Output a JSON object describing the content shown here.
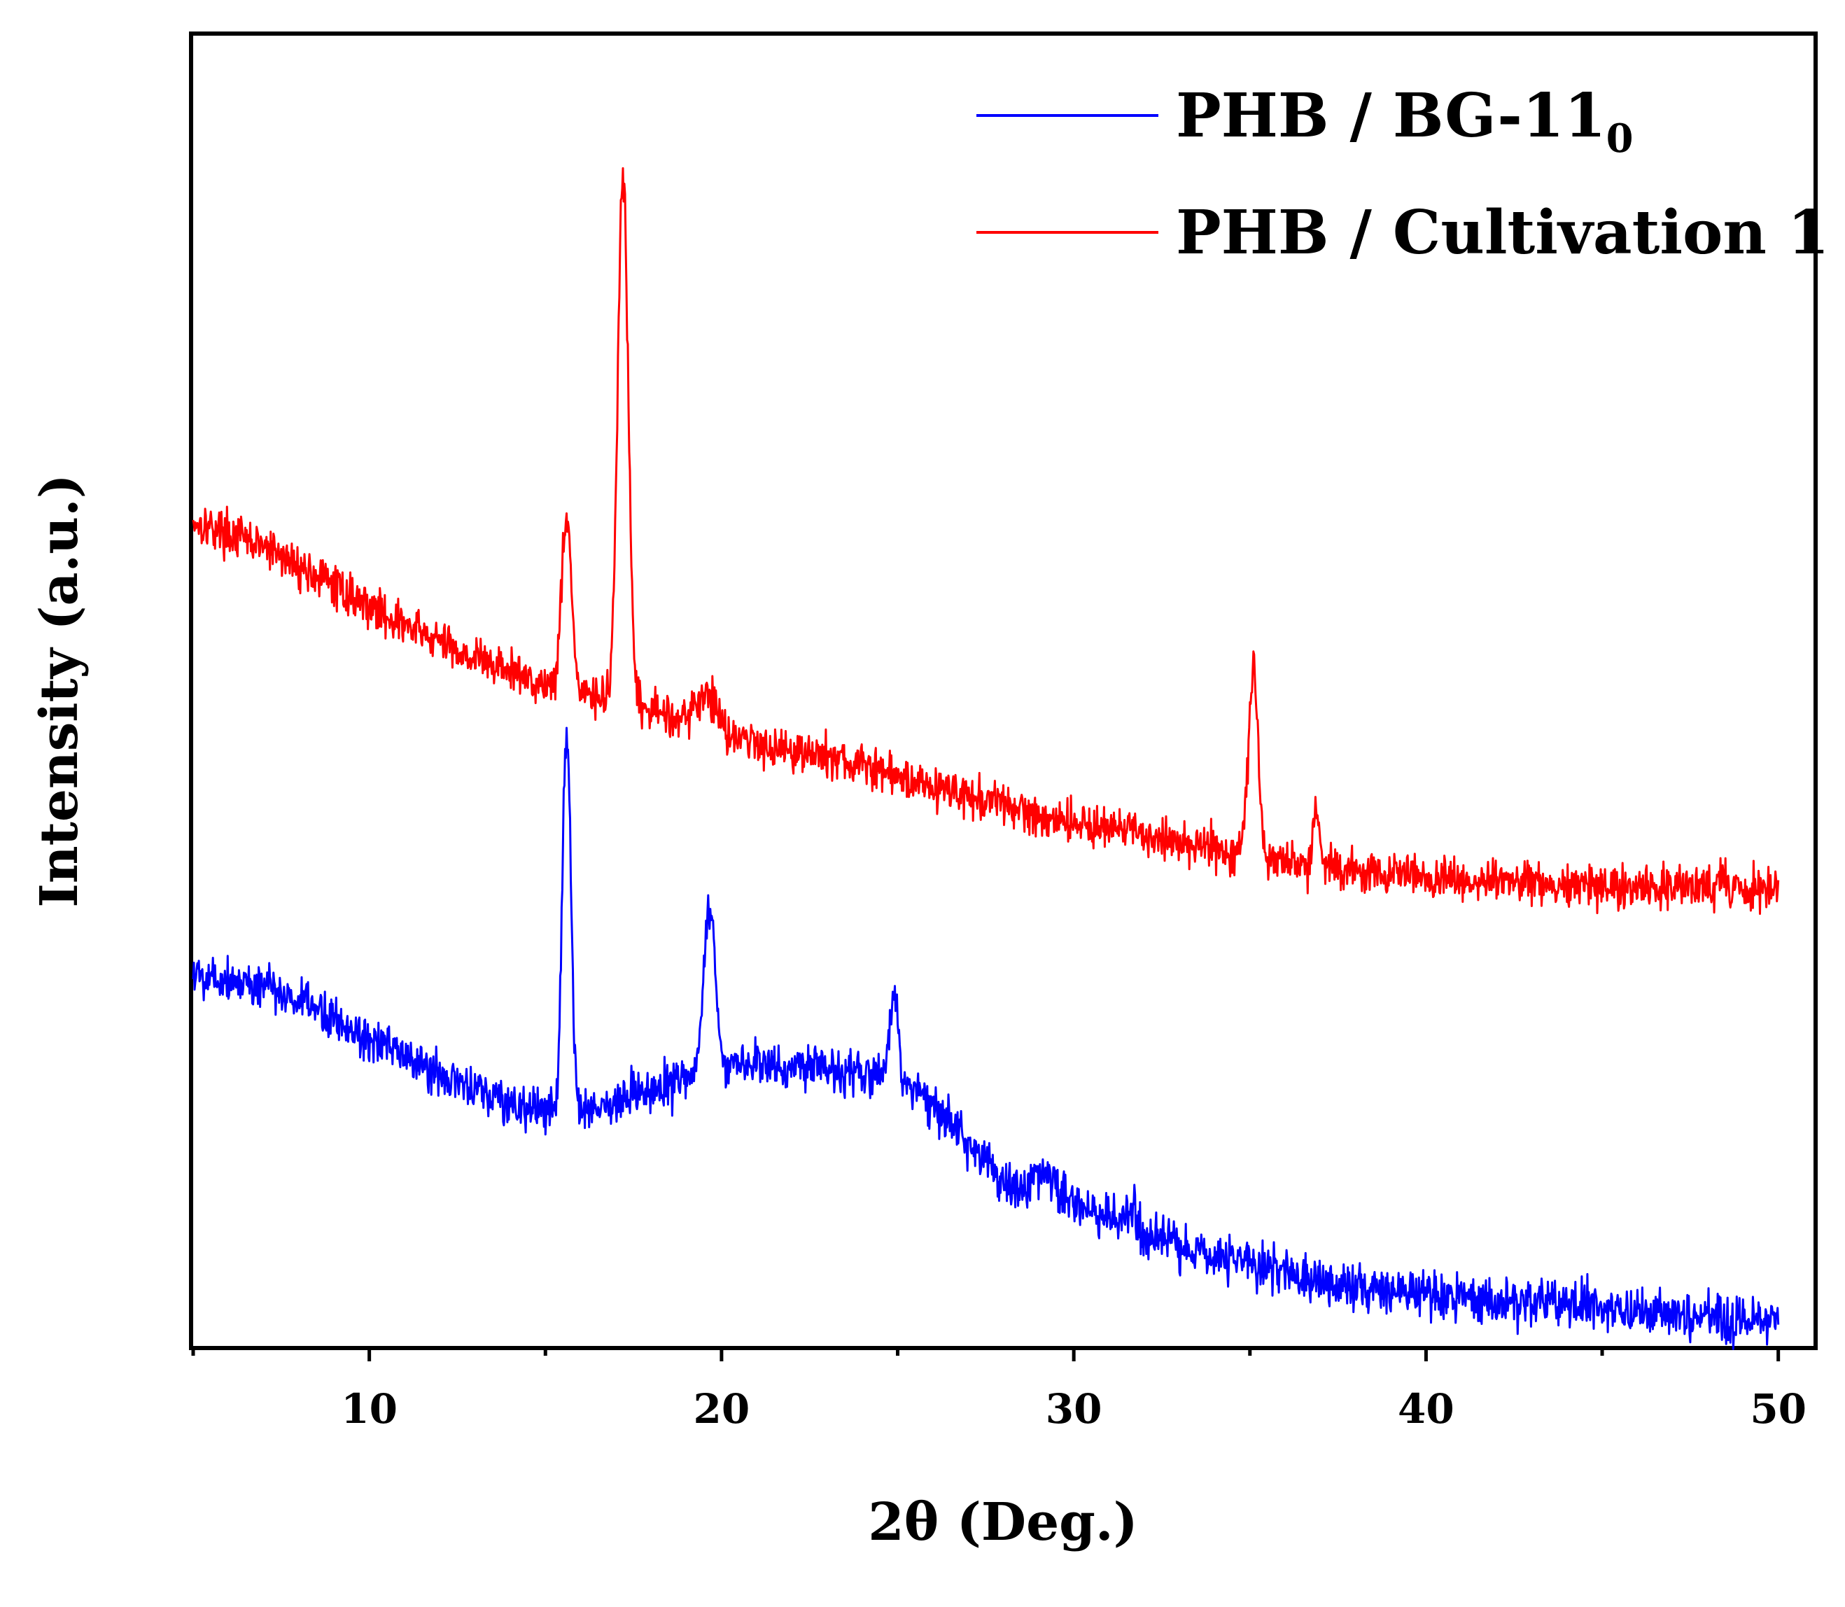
{
  "chart_data": {
    "type": "line",
    "title": "",
    "xlabel": "2θ (Deg.)",
    "ylabel": "Intensity (a.u.)",
    "xlim": [
      5,
      51
    ],
    "ylim": [
      0,
      100
    ],
    "xticks": [
      10,
      20,
      30,
      40,
      50
    ],
    "grid": false,
    "legend_position": "top-right",
    "y_ticks_labeled": false,
    "series": [
      {
        "name": "PHB / Cultivation 1",
        "label_main": "PHB / Cultivation 1",
        "color": "#ff0000",
        "baseline": [
          [
            5,
            63
          ],
          [
            7,
            61
          ],
          [
            9,
            58
          ],
          [
            11,
            55
          ],
          [
            13,
            52.5
          ],
          [
            15,
            50.5
          ],
          [
            17,
            49
          ],
          [
            19,
            48
          ],
          [
            21,
            46
          ],
          [
            23,
            45
          ],
          [
            25,
            43.5
          ],
          [
            27,
            42
          ],
          [
            29,
            40.5
          ],
          [
            31,
            39.5
          ],
          [
            33,
            38.5
          ],
          [
            35,
            37.5
          ],
          [
            37,
            36.5
          ],
          [
            39,
            36
          ],
          [
            41,
            35.5
          ],
          [
            43,
            35.3
          ],
          [
            45,
            35.1
          ],
          [
            47,
            35
          ],
          [
            50,
            35
          ]
        ],
        "peaks": [
          {
            "x": 15.6,
            "height": 13.5,
            "width": 0.14
          },
          {
            "x": 17.2,
            "height": 40,
            "width": 0.15
          },
          {
            "x": 19.6,
            "height": 2.5,
            "width": 0.25
          },
          {
            "x": 35.1,
            "height": 14,
            "width": 0.14
          },
          {
            "x": 36.9,
            "height": 4.5,
            "width": 0.09
          }
        ],
        "noise": 1.0,
        "seed": 17
      },
      {
        "name": "PHB / BG-11₀",
        "label_main": "PHB / BG-11",
        "label_sub": "0",
        "color": "#0000ff",
        "baseline": [
          [
            5,
            28.5
          ],
          [
            7,
            27.5
          ],
          [
            9,
            25
          ],
          [
            11,
            22
          ],
          [
            13,
            19.5
          ],
          [
            14.5,
            18
          ],
          [
            15.5,
            17.8
          ],
          [
            17,
            18.5
          ],
          [
            19,
            20.5
          ],
          [
            21,
            21.5
          ],
          [
            23,
            21.5
          ],
          [
            25,
            20.5
          ],
          [
            26,
            18.5
          ],
          [
            27.5,
            14
          ],
          [
            28.5,
            11.5
          ],
          [
            29.5,
            11.5
          ],
          [
            30.5,
            10
          ],
          [
            32,
            8.5
          ],
          [
            34,
            7
          ],
          [
            36,
            5.5
          ],
          [
            38,
            4.5
          ],
          [
            40,
            4
          ],
          [
            42,
            3.5
          ],
          [
            44,
            3.2
          ],
          [
            46,
            2.5
          ],
          [
            48,
            2
          ],
          [
            50,
            1.8
          ]
        ],
        "peaks": [
          {
            "x": 15.6,
            "height": 29,
            "width": 0.12
          },
          {
            "x": 19.65,
            "height": 12.5,
            "width": 0.17
          },
          {
            "x": 24.9,
            "height": 6.5,
            "width": 0.1
          },
          {
            "x": 29.1,
            "height": 1.5,
            "width": 0.35
          },
          {
            "x": 31.6,
            "height": 1.5,
            "width": 0.2
          }
        ],
        "noise": 1.1,
        "seed": 5
      }
    ]
  }
}
